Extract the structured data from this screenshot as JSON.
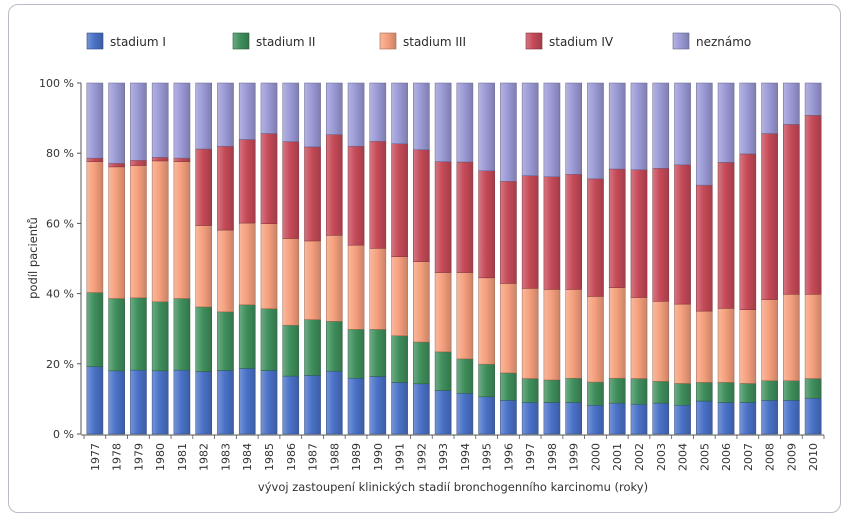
{
  "chart_data": {
    "type": "bar",
    "stacked": true,
    "categories": [
      "1977",
      "1978",
      "1979",
      "1980",
      "1981",
      "1982",
      "1983",
      "1984",
      "1985",
      "1986",
      "1987",
      "1988",
      "1989",
      "1990",
      "1991",
      "1992",
      "1993",
      "1994",
      "1995",
      "1996",
      "1997",
      "1998",
      "1999",
      "2000",
      "2001",
      "2002",
      "2003",
      "2004",
      "2005",
      "2006",
      "2007",
      "2008",
      "2009",
      "2010"
    ],
    "series": [
      {
        "name": "stadium I",
        "color": "#4a72c8",
        "values": [
          19.2,
          18.0,
          18.2,
          18.0,
          18.2,
          17.8,
          18.1,
          18.7,
          18.1,
          16.5,
          16.7,
          17.9,
          15.9,
          16.4,
          14.7,
          14.3,
          12.4,
          11.6,
          10.6,
          9.6,
          9.0,
          9.0,
          9.0,
          8.2,
          8.8,
          8.5,
          8.8,
          8.2,
          9.4,
          9.0,
          9.0,
          9.6,
          9.6,
          10.2
        ]
      },
      {
        "name": "stadium II",
        "color": "#3f8f5c",
        "values": [
          21.1,
          20.6,
          20.6,
          19.7,
          20.4,
          18.4,
          16.7,
          18.1,
          17.6,
          14.5,
          15.9,
          14.2,
          13.9,
          13.4,
          13.3,
          11.9,
          11.0,
          9.8,
          9.3,
          7.8,
          6.8,
          6.4,
          6.9,
          6.6,
          7.1,
          7.3,
          6.2,
          6.2,
          5.3,
          5.7,
          5.4,
          5.6,
          5.6,
          5.6
        ]
      },
      {
        "name": "stadium III",
        "color": "#f6a07d",
        "values": [
          37.3,
          37.5,
          37.7,
          40.1,
          39.0,
          23.2,
          23.3,
          23.3,
          24.2,
          24.7,
          22.4,
          24.5,
          24.0,
          23.1,
          22.5,
          22.9,
          22.6,
          24.6,
          24.6,
          25.5,
          25.7,
          25.8,
          25.3,
          24.4,
          25.8,
          23.1,
          22.8,
          22.6,
          20.3,
          21.1,
          21.0,
          23.1,
          24.6,
          24.0
        ]
      },
      {
        "name": "stadium IV",
        "color": "#c64a58",
        "values": [
          1.0,
          1.0,
          1.5,
          1.0,
          1.0,
          21.8,
          23.9,
          23.8,
          25.7,
          27.6,
          26.8,
          28.7,
          28.2,
          30.5,
          32.2,
          31.9,
          31.6,
          31.5,
          30.5,
          29.1,
          32.1,
          32.1,
          32.8,
          33.5,
          33.8,
          36.4,
          37.9,
          39.7,
          35.9,
          41.6,
          44.4,
          47.3,
          48.4,
          51.0
        ]
      },
      {
        "name": "neznámo",
        "color": "#9b9ad6",
        "values": [
          21.4,
          22.9,
          22.0,
          21.2,
          21.4,
          18.8,
          18.0,
          16.1,
          14.4,
          16.7,
          18.2,
          14.7,
          18.0,
          16.6,
          17.3,
          19.0,
          22.4,
          22.5,
          25.0,
          28.0,
          26.4,
          26.7,
          26.0,
          27.3,
          24.5,
          24.7,
          24.3,
          23.3,
          29.1,
          22.6,
          20.2,
          14.4,
          11.8,
          9.2
        ]
      }
    ],
    "ylim": [
      0,
      100
    ],
    "yticks": [
      "0 %",
      "20 %",
      "40 %",
      "60 %",
      "80 %",
      "100 %"
    ],
    "ylabel": "podíl pacientů",
    "xlabel": "vývoj zastoupení klinických stadií bronchogenního karcinomu (roky)",
    "legend_position": "top",
    "grid": false
  }
}
